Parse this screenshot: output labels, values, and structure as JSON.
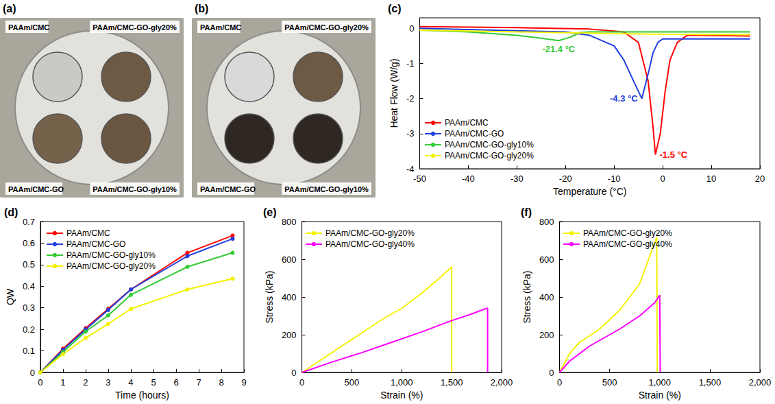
{
  "photos": [
    {
      "panel": "(a)",
      "labels": [
        "PAAm/CMC",
        "PAAm/CMC-GO-gly20%",
        "PAAm/CMC-GO",
        "PAAm/CMC-GO-gly10%"
      ]
    },
    {
      "panel": "(b)",
      "labels": [
        "PAAm/CMC",
        "PAAm/CMC-GO-gly20%",
        "PAAm/CMC-GO",
        "PAAm/CMC-GO-gly10%"
      ]
    }
  ],
  "chart_data": [
    {
      "panel": "(c)",
      "type": "line",
      "x_label": "Temperature (°C)",
      "y_label": "Heat Flow (W/g)",
      "xlim": [
        -50,
        20
      ],
      "xticks": [
        -50,
        -40,
        -30,
        -20,
        -10,
        0,
        10,
        20
      ],
      "ylim": [
        -4,
        0.3
      ],
      "yticks": [
        -4,
        -3,
        -2,
        -1,
        0
      ],
      "grid": false,
      "legend": "bottom-left",
      "marker": "none",
      "series": [
        {
          "name": "PAAm/CMC",
          "color": "#ff0000",
          "annotation": "-1.5 °C",
          "x": [
            -50,
            -30,
            -15,
            -8,
            -5,
            -3,
            -2,
            -1.5,
            -0.5,
            0.5,
            1.5,
            3,
            5,
            8,
            18
          ],
          "values": [
            0.05,
            0.02,
            -0.02,
            -0.1,
            -0.4,
            -1.5,
            -2.8,
            -3.6,
            -3.0,
            -1.8,
            -0.9,
            -0.4,
            -0.2,
            -0.2,
            -0.22
          ]
        },
        {
          "name": "PAAm/CMC-GO",
          "color": "#1f3fe0",
          "annotation": "-4.3 °C",
          "x": [
            -50,
            -35,
            -20,
            -15,
            -10,
            -8,
            -6,
            -4.3,
            -3,
            -2,
            -1,
            0,
            5,
            18
          ],
          "values": [
            0.0,
            -0.05,
            -0.1,
            -0.2,
            -0.5,
            -0.9,
            -1.5,
            -2.0,
            -1.3,
            -0.7,
            -0.4,
            -0.3,
            -0.3,
            -0.3
          ]
        },
        {
          "name": "PAAm/CMC-GO-gly10%",
          "color": "#33cc33",
          "annotation": "-21.4 °C",
          "x": [
            -50,
            -40,
            -30,
            -25,
            -21.4,
            -19,
            -17,
            -15,
            0,
            18
          ],
          "values": [
            -0.05,
            -0.1,
            -0.2,
            -0.28,
            -0.35,
            -0.25,
            -0.12,
            -0.1,
            -0.1,
            -0.1
          ]
        },
        {
          "name": "PAAm/CMC-GO-gly20%",
          "color": "#f2f200",
          "x": [
            -50,
            -30,
            -10,
            0,
            18
          ],
          "values": [
            -0.05,
            -0.1,
            -0.15,
            -0.17,
            -0.18
          ]
        }
      ]
    },
    {
      "panel": "(d)",
      "type": "line",
      "x_label": "Time (hours)",
      "y_label": "QW",
      "xlim": [
        0,
        9
      ],
      "xticks": [
        0,
        1,
        2,
        3,
        4,
        5,
        6,
        7,
        8,
        9
      ],
      "ylim": [
        0,
        0.7
      ],
      "yticks": [
        0.0,
        0.1,
        0.2,
        0.3,
        0.4,
        0.5,
        0.6,
        0.7
      ],
      "grid": false,
      "legend": "top-left",
      "marker": "circle",
      "x": [
        0,
        1,
        2,
        3,
        4,
        6.5,
        8.5
      ],
      "series": [
        {
          "name": "PAAm/CMC",
          "color": "#ff0000",
          "values": [
            0,
            0.11,
            0.205,
            0.295,
            0.385,
            0.555,
            0.635
          ]
        },
        {
          "name": "PAAm/CMC-GO",
          "color": "#1f3fe0",
          "values": [
            0,
            0.105,
            0.2,
            0.29,
            0.385,
            0.54,
            0.62
          ]
        },
        {
          "name": "PAAm/CMC-GO-gly10%",
          "color": "#33cc33",
          "values": [
            0,
            0.095,
            0.19,
            0.265,
            0.36,
            0.49,
            0.555
          ]
        },
        {
          "name": "PAAm/CMC-GO-gly20%",
          "color": "#f2f200",
          "values": [
            0,
            0.085,
            0.16,
            0.225,
            0.295,
            0.385,
            0.435
          ]
        }
      ]
    },
    {
      "panel": "(e)",
      "type": "line",
      "x_label": "Strain (%)",
      "y_label": "Stress (kPa)",
      "xlim": [
        0,
        2000
      ],
      "xticks": [
        0,
        500,
        1000,
        1500,
        2000
      ],
      "ylim": [
        0,
        800
      ],
      "yticks": [
        0,
        200,
        400,
        600,
        800
      ],
      "grid": false,
      "legend": "top-left",
      "marker": "none",
      "series": [
        {
          "name": "PAAm/CMC-GO-gly20%",
          "color": "#f2f200",
          "x": [
            0,
            200,
            400,
            600,
            800,
            1000,
            1200,
            1400,
            1500,
            1500
          ],
          "values": [
            0,
            70,
            140,
            210,
            280,
            340,
            420,
            510,
            560,
            0
          ]
        },
        {
          "name": "PAAm/CMC-GO-gly40%",
          "color": "#ff00ff",
          "x": [
            0,
            300,
            600,
            900,
            1200,
            1500,
            1700,
            1850,
            1860,
            1860
          ],
          "values": [
            0,
            55,
            105,
            160,
            215,
            275,
            310,
            340,
            340,
            0
          ]
        }
      ]
    },
    {
      "panel": "(f)",
      "type": "line",
      "x_label": "Strain (%)",
      "y_label": "Stress (kPa)",
      "xlim": [
        0,
        2000
      ],
      "xticks": [
        0,
        500,
        1000,
        1500,
        2000
      ],
      "ylim": [
        0,
        800
      ],
      "yticks": [
        0,
        200,
        400,
        600,
        800
      ],
      "grid": false,
      "legend": "top-left",
      "marker": "none",
      "series": [
        {
          "name": "PAAm/CMC-GO-gly20%",
          "color": "#f2f200",
          "x": [
            0,
            100,
            200,
            400,
            600,
            800,
            950,
            970,
            975
          ],
          "values": [
            0,
            100,
            160,
            230,
            330,
            470,
            690,
            715,
            0
          ]
        },
        {
          "name": "PAAm/CMC-GO-gly40%",
          "color": "#ff00ff",
          "x": [
            0,
            100,
            300,
            500,
            600,
            800,
            950,
            1000,
            1005
          ],
          "values": [
            0,
            60,
            140,
            200,
            230,
            300,
            370,
            410,
            0
          ]
        }
      ]
    }
  ]
}
